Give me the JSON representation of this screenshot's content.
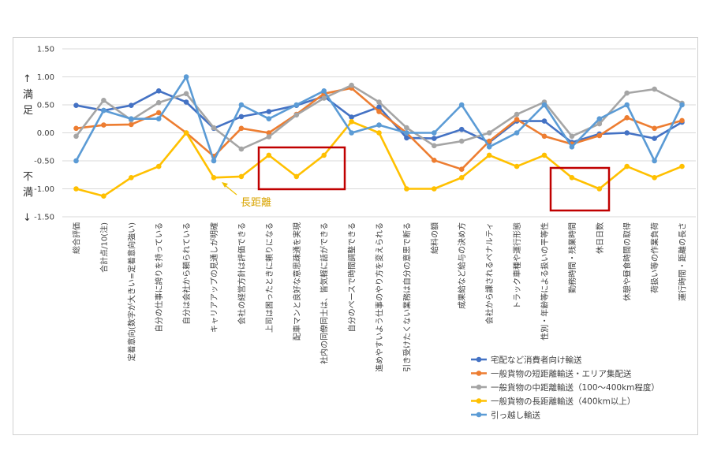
{
  "chart_data": {
    "type": "line",
    "ylim": [
      -1.5,
      1.5
    ],
    "yticks": [
      "1.50",
      "1.00",
      "0.50",
      "0.00",
      "-0.50",
      "-1.00",
      "-1.50"
    ],
    "side_labels": {
      "top_arrow": "↑",
      "top_char1": "満",
      "top_char2": "足",
      "bottom_char1": "不",
      "bottom_char2": "満",
      "bottom_arrow": "↓"
    },
    "annotation": "長距離",
    "categories": [
      "総合評価",
      "合計点/10(注)",
      "定着意向(数字が大きい=定着意向強い)",
      "自分の仕事に誇りを持っている",
      "自分は会社から頼られている",
      "キャリアアップの見通しが明確",
      "会社の経営方針は評価できる",
      "上司は困ったときに頼りになる",
      "配車マンと良好な意思疎通を実現",
      "社内の同僚同士は、皆気軽に話ができる",
      "自分のペースで時間調整できる",
      "進めやすいよう仕事のやり方を変えられる",
      "引き受けたくない業務は自分の意思で断る",
      "給料の額",
      "成果給など給与の決め方",
      "会社から課されるペナルティ",
      "トラック車種や運行形態",
      "性別・年齢等による扱いの平等性",
      "勤務時間・残業時間",
      "休日日数",
      "休憩や昼食時間の取得",
      "荷扱い等の作業負荷",
      "運行時間・距離の長さ"
    ],
    "series": [
      {
        "name": "宅配など消費者向け輸送",
        "color": "#4472c4",
        "values": [
          0.49,
          0.4,
          0.49,
          0.75,
          0.55,
          0.08,
          0.29,
          0.38,
          0.49,
          0.65,
          0.28,
          0.46,
          -0.09,
          -0.1,
          0.06,
          -0.17,
          0.21,
          0.21,
          -0.17,
          -0.02,
          0.0,
          -0.1,
          0.19
        ]
      },
      {
        "name": "一般貨物の短距離輸送・エリア集配送",
        "color": "#ed7d31",
        "values": [
          0.08,
          0.14,
          0.15,
          0.36,
          0.0,
          -0.42,
          0.08,
          0.0,
          0.33,
          0.7,
          0.8,
          0.38,
          0.0,
          -0.49,
          -0.65,
          -0.15,
          0.24,
          -0.06,
          -0.2,
          -0.05,
          0.27,
          0.08,
          0.22
        ]
      },
      {
        "name": "一般貨物の中距離輸送（100〜400km程度）",
        "color": "#a5a5a5",
        "values": [
          -0.06,
          0.58,
          0.23,
          0.54,
          0.7,
          0.09,
          -0.29,
          -0.07,
          0.32,
          0.62,
          0.85,
          0.55,
          0.09,
          -0.23,
          -0.15,
          0.0,
          0.33,
          0.55,
          -0.06,
          0.16,
          0.71,
          0.78,
          0.53
        ]
      },
      {
        "name": "一般貨物の長距離輸送（400km以上）",
        "color": "#ffc000",
        "values": [
          -1.0,
          -1.13,
          -0.8,
          -0.6,
          0.0,
          -0.8,
          -0.78,
          -0.4,
          -0.78,
          -0.4,
          0.2,
          0.0,
          -1.0,
          -1.0,
          -0.8,
          -0.4,
          -0.6,
          -0.4,
          -0.8,
          -1.0,
          -0.6,
          -0.8,
          -0.6
        ]
      },
      {
        "name": "引っ越し輸送",
        "color": "#5b9bd5",
        "values": [
          -0.5,
          0.4,
          0.25,
          0.25,
          1.0,
          -0.5,
          0.5,
          0.25,
          0.5,
          0.75,
          0.0,
          0.14,
          0.0,
          0.0,
          0.5,
          -0.25,
          0.0,
          0.5,
          -0.25,
          0.25,
          0.5,
          -0.5,
          0.5
        ]
      }
    ]
  }
}
